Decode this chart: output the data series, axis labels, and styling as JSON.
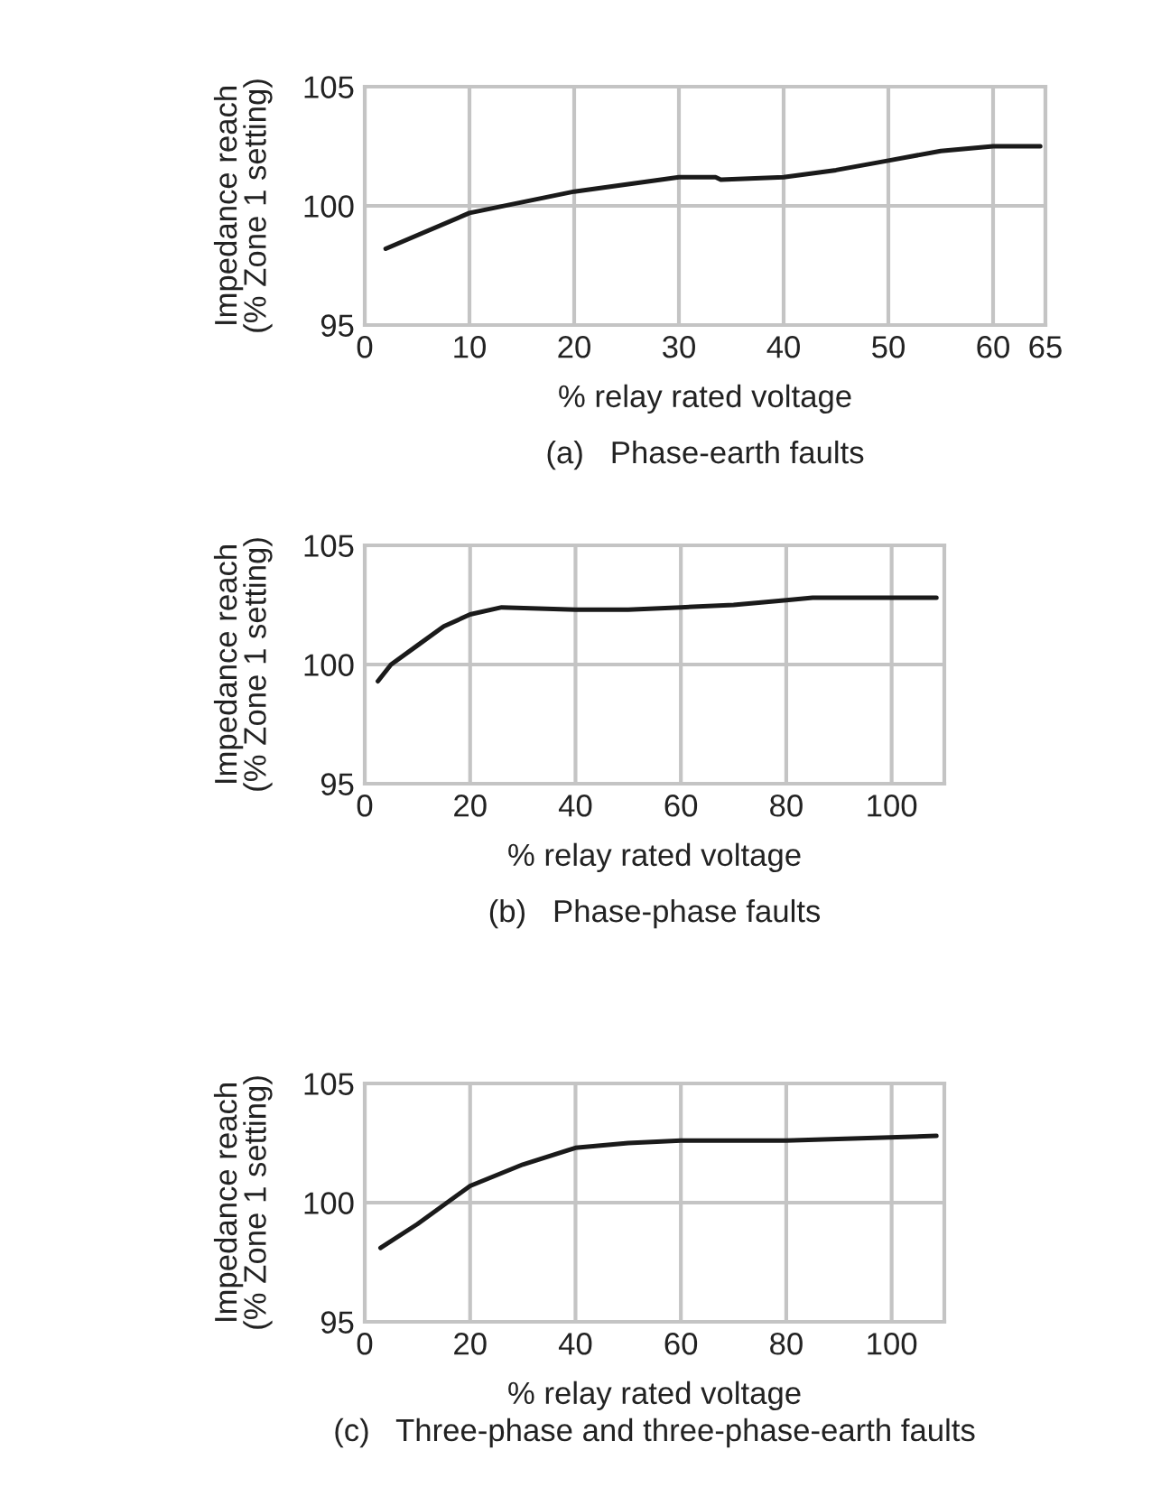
{
  "chart_data": [
    {
      "type": "line",
      "title": "(a)   Phase-earth faults",
      "xlabel": "% relay rated voltage",
      "ylabel": "Impedance reach\n(% Zone 1 setting)",
      "series": [
        {
          "color": "#1a1a1a",
          "x": [
            2,
            10,
            20,
            30,
            33.5,
            34,
            40,
            45,
            50,
            55,
            60,
            64.5
          ],
          "values": [
            98.2,
            99.7,
            100.6,
            101.2,
            101.2,
            101.1,
            101.2,
            101.5,
            101.9,
            102.3,
            102.5,
            102.5
          ]
        }
      ],
      "xlim": [
        0,
        65
      ],
      "xticks": [
        0,
        10,
        20,
        30,
        40,
        50,
        60,
        65
      ],
      "ylim": [
        95,
        105
      ],
      "yticks": [
        95,
        100,
        105
      ],
      "grid": true
    },
    {
      "type": "line",
      "title": "(b)   Phase-phase faults",
      "xlabel": "% relay rated voltage",
      "ylabel": "Impedance reach\n(% Zone 1 setting)",
      "series": [
        {
          "color": "#1a1a1a",
          "x": [
            2.5,
            5,
            10,
            15,
            20,
            26,
            40,
            50,
            60,
            70,
            80,
            85,
            108.5
          ],
          "values": [
            99.3,
            100.0,
            100.8,
            101.6,
            102.1,
            102.4,
            102.3,
            102.3,
            102.4,
            102.5,
            102.7,
            102.8,
            102.8
          ]
        }
      ],
      "xlim": [
        0,
        110
      ],
      "xticks": [
        0,
        20,
        40,
        60,
        80,
        100
      ],
      "ylim": [
        95,
        105
      ],
      "yticks": [
        95,
        100,
        105
      ],
      "grid": true
    },
    {
      "type": "line",
      "title": "(c)   Three-phase and three-phase-earth faults",
      "xlabel": "% relay rated voltage",
      "ylabel": "Impedance reach\n(% Zone 1 setting)",
      "series": [
        {
          "color": "#1a1a1a",
          "x": [
            3,
            10,
            20,
            30,
            40,
            50,
            60,
            80,
            108.5
          ],
          "values": [
            98.1,
            99.1,
            100.7,
            101.6,
            102.3,
            102.5,
            102.6,
            102.6,
            102.8
          ]
        }
      ],
      "xlim": [
        0,
        110
      ],
      "xticks": [
        0,
        20,
        40,
        60,
        80,
        100
      ],
      "ylim": [
        95,
        105
      ],
      "yticks": [
        95,
        100,
        105
      ],
      "grid": true
    }
  ]
}
